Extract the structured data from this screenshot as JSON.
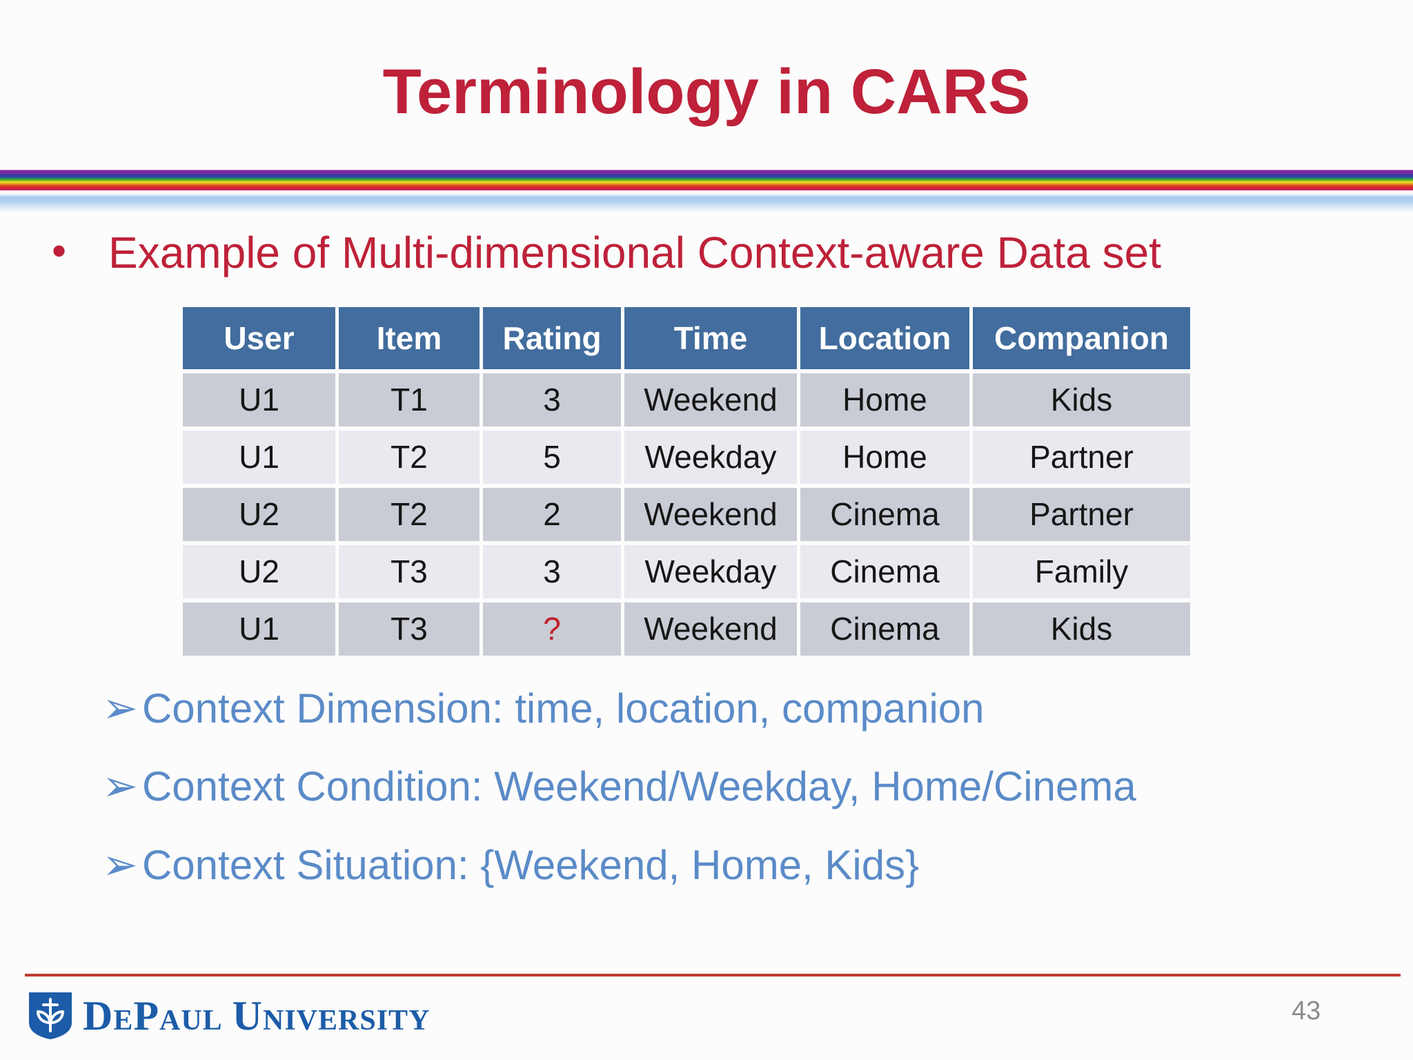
{
  "slide": {
    "title": "Terminology in CARS",
    "page_number": "43"
  },
  "lead_bullet": {
    "marker": "•",
    "text": "Example of Multi-dimensional Context-aware Data set"
  },
  "table": {
    "headers": [
      "User",
      "Item",
      "Rating",
      "Time",
      "Location",
      "Companion"
    ],
    "rows": [
      [
        "U1",
        "T1",
        "3",
        "Weekend",
        "Home",
        "Kids"
      ],
      [
        "U1",
        "T2",
        "5",
        "Weekday",
        "Home",
        "Partner"
      ],
      [
        "U2",
        "T2",
        "2",
        "Weekend",
        "Cinema",
        "Partner"
      ],
      [
        "U2",
        "T3",
        "3",
        "Weekday",
        "Cinema",
        "Family"
      ],
      [
        "U1",
        "T3",
        "?",
        "Weekend",
        "Cinema",
        "Kids"
      ]
    ],
    "missing_value": "?",
    "missing_value_color": "#c01f28"
  },
  "arrows": {
    "marker": "➢",
    "items": [
      {
        "text": "Context Dimension: time, location, companion"
      },
      {
        "text": "Context Condition: Weekend/Weekday, Home/Cinema"
      },
      {
        "text": "Context Situation: {Weekend, Home, Kids}"
      }
    ]
  },
  "footer": {
    "university_name_part1": "DePaul",
    "university_name_part2": "University"
  },
  "colors": {
    "title_red": "#be2139",
    "arrow_blue": "#5b8bc8",
    "table_header_blue": "#426d9e",
    "row_dark": "#c9ccd5",
    "row_light": "#e9e9ef",
    "footer_line_red": "#c03a31",
    "depaul_blue": "#1c5ca8",
    "page_number_gray": "#8b8b8b"
  }
}
